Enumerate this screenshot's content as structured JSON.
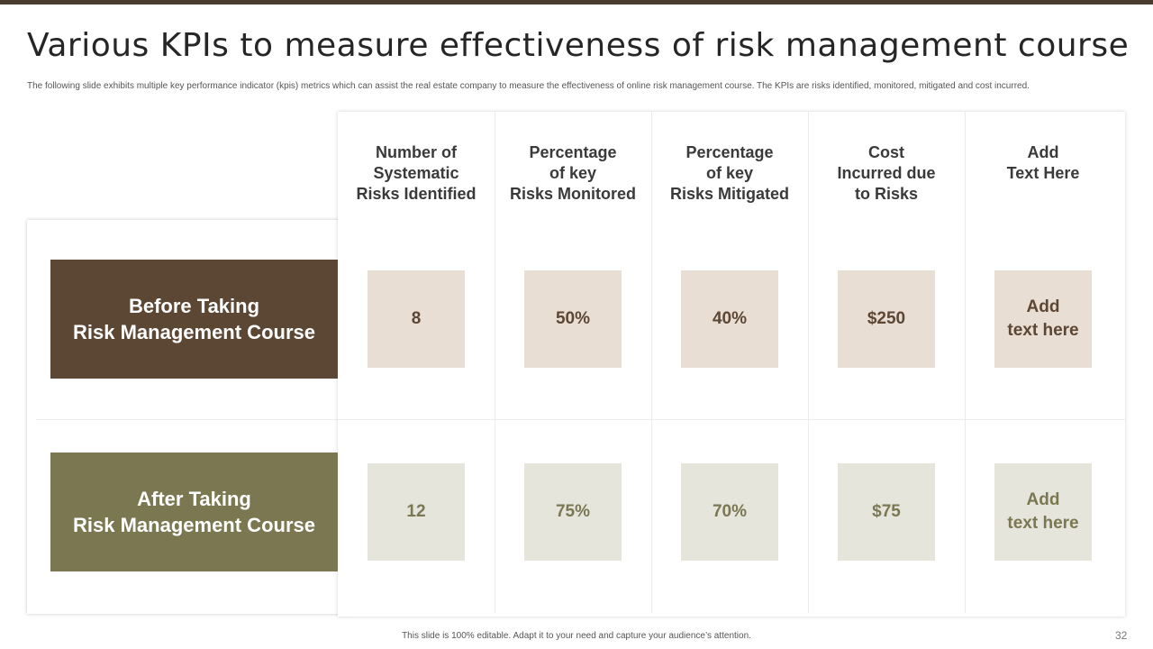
{
  "slide": {
    "title": "Various KPIs to measure effectiveness of risk management course",
    "subtitle": "The following slide exhibits multiple key performance indicator (kpis) metrics which can assist the real estate company to measure the effectiveness of online risk management course. The KPIs are risks identified, monitored, mitigated and cost incurred.",
    "footer": "This slide is 100% editable.  Adapt it to your need and capture your audience’s attention.",
    "page_number": "32"
  },
  "colors": {
    "accent_dark": "#4a3d2e",
    "before_fill": "#5c4634",
    "after_fill": "#7a7751",
    "before_cell": "#e8ded4",
    "after_cell": "#e6e5dc"
  },
  "table": {
    "columns": [
      "Number of\nSystematic\nRisks Identified",
      "Percentage\nof key\nRisks Monitored",
      "Percentage\nof key\nRisks Mitigated",
      "Cost\nIncurred due\nto Risks",
      "Add\nText Here"
    ],
    "rows": [
      {
        "label": "Before Taking\nRisk Management Course",
        "values": [
          "8",
          "50%",
          "40%",
          "$250",
          "Add\ntext here"
        ]
      },
      {
        "label": "After Taking\nRisk Management Course",
        "values": [
          "12",
          "75%",
          "70%",
          "$75",
          "Add\ntext here"
        ]
      }
    ]
  }
}
